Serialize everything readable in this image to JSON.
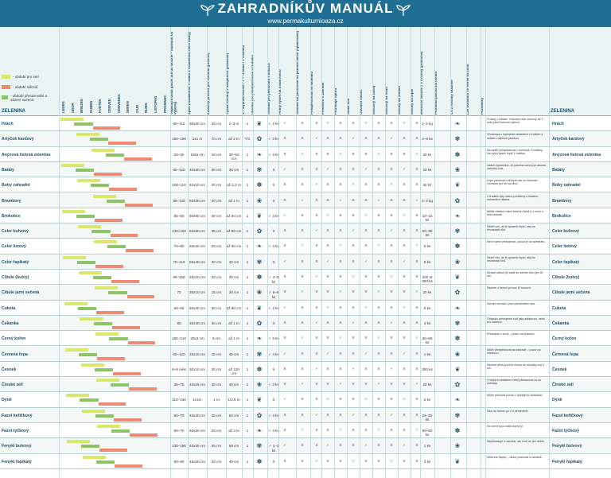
{
  "header": {
    "title": "ZAHRADNÍKŮV MANUÁL",
    "url": "www.permakulturnioaza.cz"
  },
  "legend": [
    {
      "label": "- období pro setí",
      "color": "#d9e86a"
    },
    {
      "label": "- období sklizně",
      "color": "#ec8a73"
    },
    {
      "label": "- období přesazování a sázení sazenic",
      "color": "#8cc466"
    }
  ],
  "zelenina_label": "ZELENINA",
  "months": [
    "LEDEN",
    "ÚNOR",
    "BŘEZEN",
    "DUBEN",
    "KVĚTEN",
    "ČERVEN",
    "ČERVENEC",
    "SRPEN",
    "ZÁŘÍ",
    "ŘÍJEN",
    "LISTOPAD",
    "PROSINEC"
  ],
  "columns": [
    "Vegetační doba (počet dní do sklizně – udáváno od výsevu)",
    "Spon (vzdálenost v řádku x vzdálenost mezi řádky)",
    "Krokový prostor pro rostlinu (prostor)",
    "Výška rostliny v dospělosti (přibližně)",
    "1 = Bylinné listové / T = Trvalka / 1 Víceletá",
    "Vhodné pro předpěstování v truhlíku",
    "Vhodné pro pěstování v kouzch",
    "Přímý výsev na trvalé místo",
    "Vhodné do pěstování na jednom místě (opakovaně)",
    "Předpěstování ve skleníku",
    "Předsevu v zahradě",
    "Potřebuje oporu",
    "Snáší stín",
    "Odolává suchu",
    "Náročný na živiny",
    "Náročný na vodu",
    "Nároky na stínění",
    "Nároky na teplo",
    "Množství sklizně z 1 rostliny (přibližně)",
    "Potřebná plocha na osobu",
    "Co z rostliny sklízíme",
    "Lze uskladnit ve formě na zimu",
    "Poznámky"
  ],
  "rows": [
    {
      "name": "Hrách",
      "veg": "90–110",
      "spon": "30x20 cm",
      "prostor": "20 cm",
      "vyska": "1–3 m",
      "typ": "1",
      "ks": "✓ 2 ks",
      "yield": "1–2 kg",
      "note": "Prosný, Ližňahe. Ochrana něží zelenny za 3 mdu před hlavnímí sklizní."
    },
    {
      "name": "Artyčok kardový",
      "veg": "150–180",
      "spon": "1x1 m",
      "prostor": "70 cm",
      "vyska": "až 2 m",
      "typ": "T/1",
      "ks": "✓ 3 ks",
      "yield": "4–6 ks",
      "note": "Vhodnaya u teplejších oblastech v trvalém a velkém rostlinné prostoru."
    },
    {
      "name": "Anýzová listová zelenina",
      "veg": "20–45",
      "spon": "15x5 cm",
      "prostor": "10 cm",
      "vyska": "30–50 cm",
      "typ": "1",
      "ks": "✓ 3 ks",
      "yield": "30 ks",
      "note": "Na sadlé předpěstovat v truhlících 3 rostliny. Na vyšší výsev lepší 1 rostlinu."
    },
    {
      "name": "Batáty",
      "veg": "90–120",
      "spon": "40x60 cm",
      "prostor": "30 cm",
      "vyska": "30 cm",
      "typ": "1",
      "ks": "X",
      "yield": "20 ks",
      "note": "Vadné teplomilné, že potřeba kořenů je dlouhá nabídka více."
    },
    {
      "name": "Boby zahradní",
      "veg": "100–110",
      "spon": "40x10 cm",
      "prostor": "20 cm",
      "vyska": "až 1,2 m",
      "typ": "1",
      "ks": "X",
      "yield": "30 ks",
      "note": "Lépe pěstovat v těžkých ale ve hlavních. Ochrana pro ně na zimu."
    },
    {
      "name": "Brambory",
      "veg": "90–130",
      "spon": "50x30 cm",
      "prostor": "40 cm",
      "vyska": "až 1 m",
      "typ": "1",
      "ks": "X",
      "yield": "1–2 kg",
      "note": "V tradiční lidy rostou problémy s hladem, zahraniční hlávka."
    },
    {
      "name": "Brokolice",
      "veg": "85–90",
      "spon": "60x60 cm",
      "prostor": "30 cm",
      "vyska": "až 60 cm",
      "typ": "1",
      "ks": "✓ 3 ks",
      "yield": "10–15 ks",
      "note": "Mělké některé ostré sklizně různě jí z moci o růst neroste."
    },
    {
      "name": "Celer bulvový",
      "veg": "130–140",
      "spon": "60x60 cm",
      "prostor": "35 cm",
      "vyska": "až 80 cm",
      "typ": "1",
      "ks": "X",
      "yield": "20–30 ks",
      "note": "Sázet ven, až je opravdu teplo, aby se nezastavil růst."
    },
    {
      "name": "Celer listový",
      "veg": "70–80",
      "spon": "50x40 cm",
      "prostor": "20 cm",
      "vyska": "až 80 cm",
      "typ": "1",
      "ks": "✓ 3 ks",
      "yield": "5 ks",
      "note": "Není nutné přesazovat, pokud je do substrátu."
    },
    {
      "name": "Celer řapíkatý",
      "veg": "70–110",
      "spon": "50x40 cm",
      "prostor": "30 cm",
      "vyska": "40 cm",
      "typ": "1",
      "ks": "X",
      "yield": "5 ks",
      "note": "Sázet ven, až je opravdu teplo, aby se nezastavil růst."
    },
    {
      "name": "Cibule (bulvy)",
      "veg": "90–150",
      "spon": "20x10 cm",
      "prostor": "20 cm",
      "vyska": "30 cm",
      "typ": "1",
      "ks": "✓ 4–5 ks",
      "yield": "200 at 300 ks",
      "note": "Nevadí důleží při kadé ze semen klíčí jen 90 dní."
    },
    {
      "name": "Cibule jarní sečená",
      "veg": "70",
      "spon": "30x10 cm",
      "prostor": "15 cm",
      "vyska": "30 cm",
      "typ": "1",
      "ks": "✓ 6–8 ks",
      "yield": "20 ks",
      "note": "Sázíme v trsech po cca 10 kusech."
    },
    {
      "name": "Cuketa",
      "veg": "60–65",
      "spon": "50x40 cm",
      "prostor": "30 cm",
      "vyska": "až 80 cm",
      "typ": "1",
      "ks": "✓ 2 ks",
      "yield": "5 ks",
      "note": "Sereze mírová v před předmětem síla."
    },
    {
      "name": "Čekanka",
      "veg": "80",
      "spon": "30x30 cm",
      "prostor": "30 cm",
      "vyska": "až 1 m",
      "typ": "1",
      "ks": "X",
      "yield": "3 ks",
      "note": "Čekanku pěstujeme buď jako salátovou, nebo pro kořenou."
    },
    {
      "name": "Černý kořen",
      "veg": "180–210",
      "spon": "30x3 cm",
      "prostor": "5 cm",
      "vyska": "až 1 m",
      "typ": "1",
      "ks": "✓ 5 ks",
      "yield": "30–50 ks",
      "note": "Přesnýsm v zemi – posev na hladovu."
    },
    {
      "name": "Červená řepa",
      "veg": "60–120",
      "spon": "20x15 cm",
      "prostor": "15 cm",
      "vyska": "40 cm",
      "typ": "1",
      "ks": "✓ 4 ks",
      "yield": "1 ks",
      "note": "Může předpěstovat na zahradě – pozor na hladovou."
    },
    {
      "name": "Česnek",
      "veg": "8–9 měs",
      "spon": "30x10 cm",
      "prostor": "20 cm",
      "vyska": "až 120 cm",
      "typ": "1",
      "ks": "X",
      "yield": "300 ks",
      "note": "Sázíme před prvními mrazy do hloubky cca 5 cm."
    },
    {
      "name": "Čínské zelí",
      "veg": "36–70",
      "spon": "40x25 cm",
      "prostor": "30 cm",
      "vyska": "40 cm",
      "typ": "1",
      "ks": "✓ 3 ks",
      "yield": "20 ks",
      "note": "V teplých oblastech větší přesazovat až do zahrady."
    },
    {
      "name": "Dýně",
      "veg": "110–130",
      "spon": "1x1m",
      "prostor": "1 m",
      "vyska": "1/3,5 m",
      "typ": "1",
      "ks": "X",
      "yield": "5 ks",
      "note": "Může pěstovat pouze v teplejších oblastech."
    },
    {
      "name": "Fazol keříčkový",
      "veg": "60–70",
      "spon": "40x20 cm",
      "prostor": "25 cm",
      "vyska": "50 cm",
      "typ": "1",
      "ks": "✓ 3 ks",
      "yield": "15–20 ks",
      "note": "Sází do fazole po 2-3 semenech."
    },
    {
      "name": "Fazol tyčkový",
      "veg": "60–70",
      "spon": "60x20 cm",
      "prostor": "20 cm",
      "vyska": "až 3 m",
      "typ": "1",
      "ks": "✓ 3 ks",
      "yield": "50–60 ks",
      "note": "Do země jsou sušit kromě je."
    },
    {
      "name": "Fenykl bulvový",
      "veg": "130–180",
      "spon": "40x25 cm",
      "prostor": "25 cm",
      "vyska": "50 cm",
      "typ": "1",
      "ks": "✓ 1–3 ks",
      "yield": "1 ks",
      "note": "Nepřesazuje u sazenic, ale tvoří se jen dobře."
    },
    {
      "name": "Fenykl řapíkatý",
      "veg": "60–80",
      "spon": "45x20 cm",
      "prostor": "20 cm",
      "vyska": "40 cm",
      "typ": "1",
      "ks": "X",
      "yield": "3 ks",
      "note": "Můžeme řapíky – dlouh pracovat a nastavit."
    }
  ]
}
